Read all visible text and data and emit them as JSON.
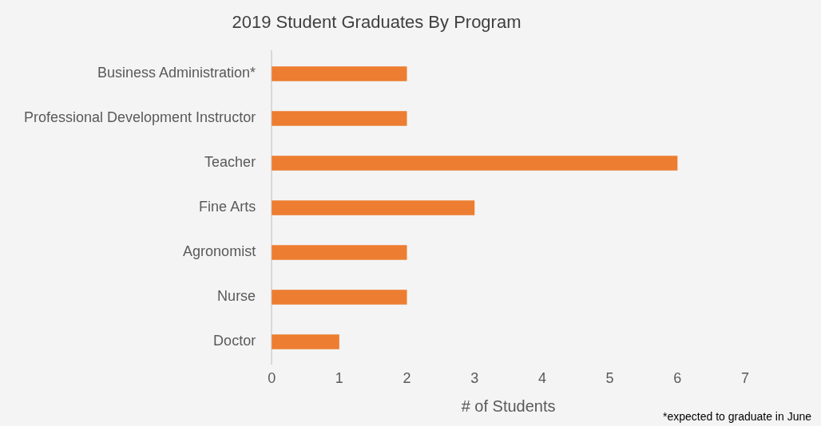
{
  "chart_data": {
    "type": "bar",
    "orientation": "horizontal",
    "title": "2019 Student Graduates By Program",
    "xlabel": "# of Students",
    "categories": [
      "Business Administration*",
      "Professional Development Instructor",
      "Teacher",
      "Fine Arts",
      "Agronomist",
      "Nurse",
      "Doctor"
    ],
    "values": [
      2,
      2,
      6,
      3,
      2,
      2,
      1
    ],
    "color": "#ed7d31",
    "xlim": [
      0,
      7
    ],
    "xticks": [
      0,
      1,
      2,
      3,
      4,
      5,
      6,
      7
    ],
    "grid": false,
    "legend": false,
    "annotations": [
      "*expected to graduate in June"
    ]
  }
}
